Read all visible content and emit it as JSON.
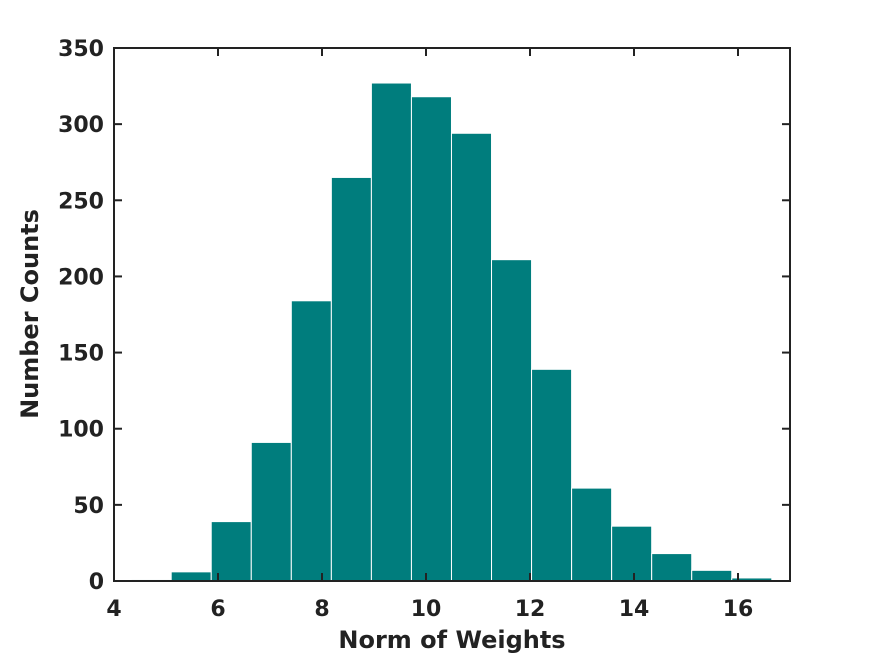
{
  "chart_data": {
    "type": "bar",
    "variant": "histogram",
    "title": "",
    "xlabel": "Norm of Weights",
    "ylabel": "Number Counts",
    "xlim": [
      4,
      17
    ],
    "ylim": [
      0,
      350
    ],
    "xticks": [
      4,
      6,
      8,
      10,
      12,
      14,
      16
    ],
    "yticks": [
      0,
      50,
      100,
      150,
      200,
      250,
      300,
      350
    ],
    "bin_edges": [
      4.33,
      5.1,
      5.87,
      6.64,
      7.41,
      8.18,
      8.95,
      9.72,
      10.49,
      11.26,
      12.03,
      12.8,
      13.57,
      14.34,
      15.11,
      15.88,
      16.65
    ],
    "values": [
      1,
      6,
      39,
      91,
      184,
      265,
      327,
      318,
      294,
      211,
      139,
      61,
      36,
      18,
      7,
      2
    ],
    "grid": false,
    "bar_color": "#007d7d",
    "edge_color": "#ffffff"
  }
}
